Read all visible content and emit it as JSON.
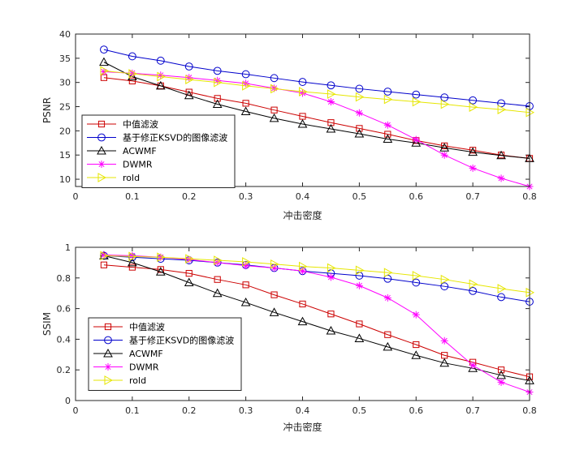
{
  "chart_data": [
    {
      "type": "line",
      "xlabel": "冲击密度",
      "ylabel": "PSNR",
      "xlim": [
        0,
        0.8
      ],
      "ylim": [
        8.5,
        40
      ],
      "xticks": [
        "0",
        "0.1",
        "0.2",
        "0.3",
        "0.4",
        "0.5",
        "0.6",
        "0.7",
        "0.8"
      ],
      "yticks": [
        "10",
        "15",
        "20",
        "25",
        "30",
        "35",
        "40"
      ],
      "grid": true,
      "legend_position": "bottom-left",
      "x": [
        0.05,
        0.1,
        0.15,
        0.2,
        0.25,
        0.3,
        0.35,
        0.4,
        0.45,
        0.5,
        0.55,
        0.6,
        0.65,
        0.7,
        0.75,
        0.8
      ],
      "series": [
        {
          "name": "中值滤波",
          "color": "#cc0000",
          "marker": "square",
          "values": [
            31.0,
            30.3,
            29.3,
            28.0,
            26.7,
            25.7,
            24.3,
            23.0,
            21.7,
            20.5,
            19.3,
            18.0,
            16.9,
            16.0,
            15.0,
            14.3
          ]
        },
        {
          "name": "基于修正KSVD的图像滤波",
          "color": "#0000cc",
          "marker": "circle",
          "values": [
            36.8,
            35.4,
            34.5,
            33.3,
            32.4,
            31.7,
            30.9,
            30.1,
            29.4,
            28.7,
            28.1,
            27.5,
            26.9,
            26.3,
            25.7,
            25.1
          ]
        },
        {
          "name": "ACWMF",
          "color": "#000000",
          "marker": "triangle",
          "values": [
            34.2,
            31.2,
            29.3,
            27.3,
            25.5,
            24.0,
            22.6,
            21.4,
            20.4,
            19.4,
            18.3,
            17.5,
            16.5,
            15.6,
            14.9,
            14.3
          ]
        },
        {
          "name": "DWMR",
          "color": "#ff00ff",
          "marker": "star",
          "values": [
            32.2,
            31.9,
            31.5,
            31.0,
            30.4,
            29.8,
            28.8,
            27.8,
            26.0,
            23.7,
            21.2,
            18.2,
            15.0,
            12.3,
            10.2,
            8.5
          ]
        },
        {
          "name": "rold",
          "color": "#e6e600",
          "marker": "triangle-right",
          "values": [
            32.4,
            31.8,
            31.2,
            30.6,
            30.0,
            29.3,
            28.7,
            28.1,
            27.6,
            27.0,
            26.5,
            26.0,
            25.5,
            24.9,
            24.4,
            23.8
          ]
        }
      ]
    },
    {
      "type": "line",
      "xlabel": "冲击密度",
      "ylabel": "SSIM",
      "xlim": [
        0,
        0.8
      ],
      "ylim": [
        0,
        1
      ],
      "xticks": [
        "0",
        "0.1",
        "0.2",
        "0.3",
        "0.4",
        "0.5",
        "0.6",
        "0.7",
        "0.8"
      ],
      "yticks": [
        "0",
        "0.2",
        "0.4",
        "0.6",
        "0.8",
        "1"
      ],
      "grid": true,
      "legend_position": "bottom-left",
      "x": [
        0.05,
        0.1,
        0.15,
        0.2,
        0.25,
        0.3,
        0.35,
        0.4,
        0.45,
        0.5,
        0.55,
        0.6,
        0.65,
        0.7,
        0.75,
        0.8
      ],
      "series": [
        {
          "name": "中值滤波",
          "color": "#cc0000",
          "marker": "square",
          "values": [
            0.885,
            0.87,
            0.855,
            0.83,
            0.79,
            0.755,
            0.69,
            0.63,
            0.565,
            0.5,
            0.43,
            0.365,
            0.295,
            0.25,
            0.2,
            0.155
          ]
        },
        {
          "name": "基于修正KSVD的图像滤波",
          "color": "#0000cc",
          "marker": "circle",
          "values": [
            0.945,
            0.935,
            0.925,
            0.915,
            0.9,
            0.885,
            0.865,
            0.845,
            0.83,
            0.815,
            0.795,
            0.77,
            0.745,
            0.715,
            0.675,
            0.645
          ]
        },
        {
          "name": "ACWMF",
          "color": "#000000",
          "marker": "triangle",
          "values": [
            0.945,
            0.9,
            0.84,
            0.77,
            0.7,
            0.64,
            0.575,
            0.515,
            0.455,
            0.405,
            0.35,
            0.295,
            0.245,
            0.21,
            0.165,
            0.13
          ]
        },
        {
          "name": "DWMR",
          "color": "#ff00ff",
          "marker": "star",
          "values": [
            0.95,
            0.945,
            0.935,
            0.92,
            0.9,
            0.88,
            0.865,
            0.845,
            0.805,
            0.75,
            0.67,
            0.56,
            0.39,
            0.23,
            0.12,
            0.055
          ]
        },
        {
          "name": "rold",
          "color": "#e6e600",
          "marker": "triangle-right",
          "values": [
            0.945,
            0.94,
            0.935,
            0.925,
            0.915,
            0.905,
            0.89,
            0.875,
            0.865,
            0.85,
            0.835,
            0.815,
            0.79,
            0.76,
            0.73,
            0.705
          ]
        }
      ]
    }
  ]
}
